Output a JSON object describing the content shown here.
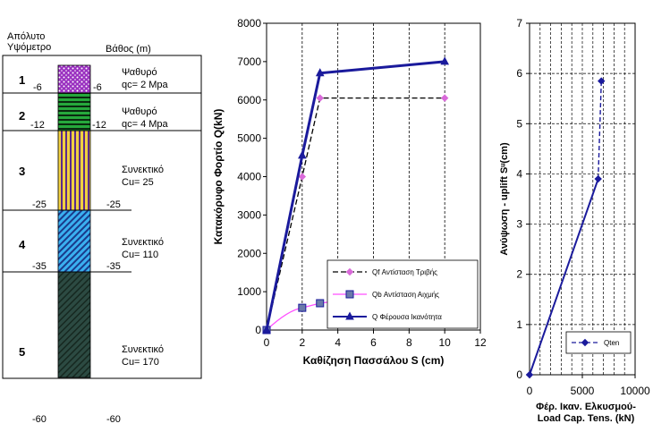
{
  "profile": {
    "header_left_1": "Απόλυτο",
    "header_left_2": "Υψόμετρο",
    "header_right": "Βάθος (m)",
    "layers": [
      {
        "num": "1",
        "elev_left": "-6",
        "elev_right": "-6",
        "desc_1": "Ψαθυρό",
        "desc_2": "qc= 2 Mpa",
        "pattern": "dots",
        "color": "#a040c8",
        "depth_from": 0,
        "depth_to": 6
      },
      {
        "num": "2",
        "elev_left": "-12",
        "elev_right": "-12",
        "desc_1": "Ψαθυρό",
        "desc_2": "qc= 4 Mpa",
        "pattern": "hstripes",
        "color": "#2db34a",
        "depth_from": 6,
        "depth_to": 12
      },
      {
        "num": "3",
        "elev_left": "-25",
        "elev_right": "-25",
        "desc_1": "Συνεκτικό",
        "desc_2": "Cu= 25",
        "pattern": "vstripes",
        "color": "#e8c83c",
        "depth_from": 12,
        "depth_to": 25
      },
      {
        "num": "4",
        "elev_left": "-35",
        "elev_right": "-35",
        "desc_1": "Συνεκτικό",
        "desc_2": "Cu= 110",
        "pattern": "diagonal",
        "color": "#35a8e8",
        "depth_from": 25,
        "depth_to": 35
      },
      {
        "num": "5",
        "elev_left": "",
        "elev_right": "",
        "desc_1": "Συνεκτικό",
        "desc_2": "Cu= 170",
        "pattern": "diagonal-dark",
        "color": "#2f4a40",
        "depth_from": 35,
        "depth_to": 60
      }
    ],
    "bottom_left": "-60",
    "bottom_right": "-60"
  },
  "chart_data": [
    {
      "type": "line",
      "ylabel": "Κατακόρυφο Φορτίο Q(kN)",
      "xlabel": "Καθίζηση Πασσάλου S (cm)",
      "xlim": [
        0,
        12
      ],
      "ylim": [
        0,
        8000
      ],
      "xticks": [
        "0",
        "2",
        "4",
        "6",
        "8",
        "10",
        "12"
      ],
      "yticks": [
        "0",
        "1000",
        "2000",
        "3000",
        "4000",
        "5000",
        "6000",
        "7000",
        "8000"
      ],
      "grid": "vertical dashed",
      "legend_position": "bottom-right",
      "series": [
        {
          "name": "Qf Αντίσταση Τριβής",
          "color": "#d96ad9",
          "marker": "diamond",
          "dash": "6,3",
          "x": [
            0,
            2,
            3,
            10
          ],
          "y": [
            0,
            4000,
            6050,
            6050
          ]
        },
        {
          "name": "Qb Αντίσταση Αιχμής",
          "color": "#ff4fff",
          "marker": "square",
          "dash": "",
          "x": [
            0,
            2,
            3,
            10
          ],
          "y": [
            0,
            580,
            700,
            1000
          ]
        },
        {
          "name": "Q Φέρουσα Ικανότητα",
          "color": "#1a1a9c",
          "marker": "triangle",
          "dash": "",
          "x": [
            0,
            2,
            3,
            10
          ],
          "y": [
            0,
            4550,
            6700,
            7000
          ]
        }
      ]
    },
    {
      "type": "line",
      "ylabel": "Ανύψωση - uplift Sᵘ(cm)",
      "xlabel_1": "Φέρ. Ικαν. Ελκυσμού-",
      "xlabel_2": "Load Cap. Tens. (kN)",
      "xlim": [
        0,
        10000
      ],
      "ylim": [
        0,
        7
      ],
      "xticks": [
        "0",
        "5000",
        "10000"
      ],
      "yticks": [
        "0",
        "1",
        "2",
        "3",
        "4",
        "5",
        "6",
        "7"
      ],
      "grid": "both dashed",
      "legend_position": "bottom-right",
      "series": [
        {
          "name": "Qten",
          "color": "#1a1a9c",
          "marker": "diamond",
          "dash": "5,3",
          "x": [
            0,
            6500,
            6800
          ],
          "y": [
            0,
            3.9,
            5.85
          ]
        }
      ]
    }
  ]
}
